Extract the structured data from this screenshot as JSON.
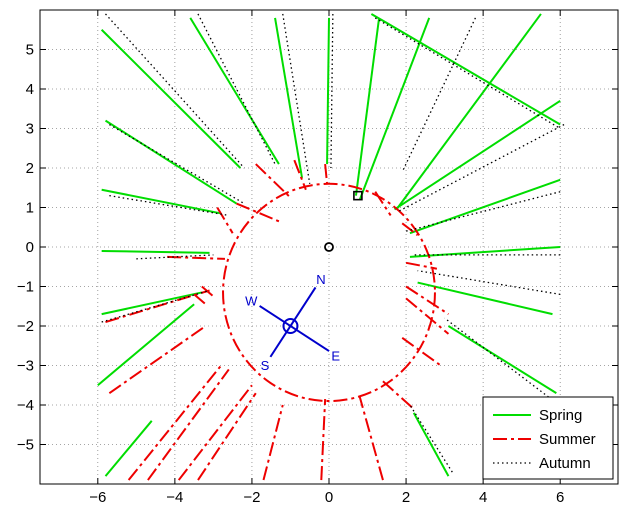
{
  "chart_data": {
    "type": "line",
    "title": "",
    "xlabel": "",
    "ylabel": "",
    "xlim": [
      -7.5,
      7.5
    ],
    "ylim": [
      -6,
      6
    ],
    "grid": true,
    "x_ticks": [
      -6,
      -4,
      -2,
      0,
      2,
      4,
      6
    ],
    "x_tick_labels": [
      "−6",
      "−4",
      "−2",
      "0",
      "2",
      "4",
      "6"
    ],
    "y_ticks": [
      5,
      4,
      3,
      2,
      1,
      0,
      -1,
      -2,
      -3,
      -4,
      -5
    ],
    "y_tick_labels": [
      "5",
      "4",
      "3",
      "2",
      "1",
      "0",
      "−1",
      "−2",
      "−3",
      "−4",
      "−5"
    ],
    "legend_position": "bottom-right",
    "series": [
      {
        "name": "Spring",
        "color": "#00dd00",
        "style": "solid",
        "segments": [
          [
            [
              -5.9,
              5.5
            ],
            [
              -2.3,
              2.0
            ]
          ],
          [
            [
              -3.6,
              5.8
            ],
            [
              -1.3,
              2.1
            ]
          ],
          [
            [
              -5.8,
              3.2
            ],
            [
              -2.4,
              1.1
            ]
          ],
          [
            [
              -5.9,
              1.45
            ],
            [
              -2.8,
              0.85
            ]
          ],
          [
            [
              -5.9,
              -0.1
            ],
            [
              -3.1,
              -0.15
            ]
          ],
          [
            [
              -5.9,
              -1.7
            ],
            [
              -3.3,
              -1.15
            ]
          ],
          [
            [
              -6.0,
              -3.5
            ],
            [
              -3.5,
              -1.45
            ]
          ],
          [
            [
              -5.8,
              -5.8
            ],
            [
              -4.6,
              -4.4
            ]
          ],
          [
            [
              -1.4,
              5.8
            ],
            [
              -0.7,
              1.75
            ]
          ],
          [
            [
              0.0,
              5.8
            ],
            [
              -0.05,
              2.1
            ]
          ],
          [
            [
              1.3,
              5.8
            ],
            [
              0.7,
              1.3
            ]
          ],
          [
            [
              2.6,
              5.8
            ],
            [
              0.8,
              1.2
            ]
          ],
          [
            [
              5.5,
              5.9
            ],
            [
              1.75,
              0.95
            ]
          ],
          [
            [
              6.0,
              3.7
            ],
            [
              1.7,
              0.95
            ]
          ],
          [
            [
              6.0,
              1.7
            ],
            [
              2.1,
              0.35
            ]
          ],
          [
            [
              6.0,
              0.0
            ],
            [
              2.1,
              -0.25
            ]
          ],
          [
            [
              5.8,
              -1.7
            ],
            [
              2.3,
              -0.9
            ]
          ],
          [
            [
              5.9,
              -3.7
            ],
            [
              3.1,
              -2.0
            ]
          ],
          [
            [
              3.1,
              -5.8
            ],
            [
              2.2,
              -4.2
            ]
          ],
          [
            [
              1.1,
              5.9
            ],
            [
              6.0,
              3.1
            ]
          ]
        ]
      },
      {
        "name": "Summer",
        "color": "#ee0000",
        "style": "dashdot",
        "circle": {
          "cx": 0.0,
          "cy": -1.15,
          "r": 2.75
        },
        "segments": [
          [
            [
              -2.4,
              1.1
            ],
            [
              -1.3,
              0.65
            ]
          ],
          [
            [
              -1.9,
              2.1
            ],
            [
              -1.0,
              1.25
            ]
          ],
          [
            [
              -0.9,
              2.2
            ],
            [
              -0.6,
              1.45
            ]
          ],
          [
            [
              -0.1,
              2.1
            ],
            [
              -0.05,
              1.6
            ]
          ],
          [
            [
              -2.9,
              1.0
            ],
            [
              -2.5,
              0.35
            ]
          ],
          [
            [
              -4.2,
              -0.25
            ],
            [
              -2.7,
              -0.3
            ]
          ],
          [
            [
              -3.3,
              -1.0
            ],
            [
              -3.0,
              -1.25
            ]
          ],
          [
            [
              -3.5,
              -1.2
            ],
            [
              -3.2,
              -1.45
            ]
          ],
          [
            [
              -5.8,
              -1.9
            ],
            [
              -3.1,
              -1.1
            ]
          ],
          [
            [
              -5.7,
              -3.7
            ],
            [
              -3.2,
              -2.0
            ]
          ],
          [
            [
              -5.2,
              -5.9
            ],
            [
              -2.8,
              -3.0
            ]
          ],
          [
            [
              -4.7,
              -5.9
            ],
            [
              -2.6,
              -3.1
            ]
          ],
          [
            [
              -3.9,
              -5.9
            ],
            [
              -2.0,
              -3.5
            ]
          ],
          [
            [
              -3.4,
              -5.9
            ],
            [
              -1.9,
              -3.7
            ]
          ],
          [
            [
              -1.7,
              -5.9
            ],
            [
              -1.2,
              -4.0
            ]
          ],
          [
            [
              -0.2,
              -5.9
            ],
            [
              -0.1,
              -3.85
            ]
          ],
          [
            [
              1.4,
              -5.9
            ],
            [
              0.8,
              -3.8
            ]
          ],
          [
            [
              1.2,
              1.4
            ],
            [
              1.6,
              0.8
            ]
          ],
          [
            [
              1.9,
              0.6
            ],
            [
              2.3,
              0.3
            ]
          ],
          [
            [
              2.0,
              -0.4
            ],
            [
              2.8,
              -0.55
            ]
          ],
          [
            [
              2.0,
              -1.0
            ],
            [
              3.1,
              -1.7
            ]
          ],
          [
            [
              2.0,
              -1.3
            ],
            [
              3.1,
              -2.2
            ]
          ],
          [
            [
              1.9,
              -2.3
            ],
            [
              2.9,
              -3.0
            ]
          ],
          [
            [
              1.4,
              -3.4
            ],
            [
              2.2,
              -4.1
            ]
          ]
        ]
      },
      {
        "name": "Autumn",
        "color": "#000000",
        "style": "dotted",
        "segments": [
          [
            [
              -5.8,
              5.9
            ],
            [
              -2.2,
              2.0
            ]
          ],
          [
            [
              -3.4,
              5.9
            ],
            [
              -1.4,
              2.1
            ]
          ],
          [
            [
              -5.7,
              3.1
            ],
            [
              -2.2,
              1.1
            ]
          ],
          [
            [
              -5.7,
              1.3
            ],
            [
              -2.6,
              0.8
            ]
          ],
          [
            [
              -5.0,
              -0.3
            ],
            [
              -3.0,
              -0.2
            ]
          ],
          [
            [
              -5.9,
              -1.9
            ],
            [
              -3.1,
              -1.1
            ]
          ],
          [
            [
              -1.2,
              5.9
            ],
            [
              -0.5,
              1.6
            ]
          ],
          [
            [
              0.1,
              5.9
            ],
            [
              0.05,
              2.0
            ]
          ],
          [
            [
              3.8,
              5.8
            ],
            [
              1.9,
              1.9
            ]
          ],
          [
            [
              6.1,
              3.1
            ],
            [
              1.8,
              0.9
            ]
          ],
          [
            [
              6.0,
              1.4
            ],
            [
              2.0,
              0.4
            ]
          ],
          [
            [
              6.0,
              -0.2
            ],
            [
              2.2,
              -0.2
            ]
          ],
          [
            [
              6.0,
              -1.2
            ],
            [
              2.3,
              -0.6
            ]
          ],
          [
            [
              5.7,
              -3.8
            ],
            [
              3.0,
              -1.8
            ]
          ],
          [
            [
              3.2,
              -5.7
            ],
            [
              2.1,
              -4.0
            ]
          ],
          [
            [
              1.2,
              5.8
            ],
            [
              6.0,
              3.0
            ]
          ]
        ]
      }
    ],
    "markers": [
      {
        "name": "origin-marker",
        "shape": "circle",
        "x": 0.0,
        "y": 0.0,
        "color": "#000000"
      },
      {
        "name": "square-marker",
        "shape": "square",
        "x": 0.75,
        "y": 1.3,
        "color": "#000000"
      }
    ],
    "compass": {
      "color": "#0000cc",
      "center": [
        -1.0,
        -2.0
      ],
      "labels": {
        "north": "N",
        "south": "S",
        "east": "E",
        "west": "W"
      }
    },
    "legend": [
      {
        "label": "Spring",
        "color": "#00dd00",
        "style": "solid"
      },
      {
        "label": "Summer",
        "color": "#ee0000",
        "style": "dashdot"
      },
      {
        "label": "Autumn",
        "color": "#000000",
        "style": "dotted"
      }
    ]
  }
}
